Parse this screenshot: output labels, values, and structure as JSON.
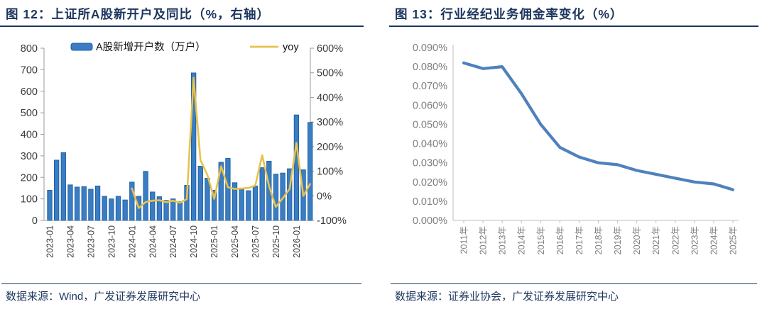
{
  "figure12": {
    "title": "图 12：上证所A股新开户及同比（%，右轴）",
    "source": "数据来源：Wind，广发证券发展研究中心"
  },
  "figure13": {
    "title": "图 13：行业经纪业务佣金率变化（%）",
    "source": "数据来源：证券业协会，广发证券发展研究中心"
  },
  "colors": {
    "navy": "#1C355E",
    "bar_fill": "#3A7DC2",
    "bar_stroke": "#1B5EA6",
    "yoy_line": "#E8C24B",
    "commission_line": "#4E81BD",
    "axis_line": "#9B9B9B",
    "axis_text_dark": "#3A3A3A",
    "axis_text_gray": "#7F7F7F"
  },
  "chart_data": [
    {
      "type": "bar",
      "title": "上证所A股新开户及同比（%，右轴）",
      "legend_position": "top",
      "categories": [
        "2023-01",
        "2023-02",
        "2023-03",
        "2023-04",
        "2023-05",
        "2023-06",
        "2023-07",
        "2023-08",
        "2023-09",
        "2023-10",
        "2023-11",
        "2023-12",
        "2024-01",
        "2024-02",
        "2024-03",
        "2024-04",
        "2024-05",
        "2024-06",
        "2024-07",
        "2024-08",
        "2024-09",
        "2024-10",
        "2024-11",
        "2024-12",
        "2025-01",
        "2025-02",
        "2025-03",
        "2025-04",
        "2025-05",
        "2025-06",
        "2025-07",
        "2025-08",
        "2025-09",
        "2025-10",
        "2025-11",
        "2025-12",
        "2026-01",
        "2026-02",
        "2026-03"
      ],
      "x_tick_every": 3,
      "series": [
        {
          "name": "A股新增开户数（万户）",
          "kind": "bar",
          "axis": "left",
          "values": [
            140,
            280,
            315,
            165,
            155,
            157,
            145,
            160,
            112,
            100,
            112,
            95,
            178,
            112,
            228,
            132,
            110,
            93,
            100,
            88,
            163,
            685,
            252,
            196,
            140,
            270,
            288,
            175,
            145,
            138,
            160,
            245,
            275,
            215,
            220,
            240,
            490,
            235,
            455
          ]
        },
        {
          "name": "yoy",
          "kind": "line",
          "axis": "right",
          "values": [
            null,
            null,
            null,
            null,
            null,
            null,
            null,
            null,
            null,
            null,
            null,
            null,
            30,
            -50,
            -25,
            -20,
            -18,
            -26,
            -20,
            -28,
            -14,
            480,
            145,
            85,
            -12,
            120,
            35,
            28,
            30,
            32,
            42,
            165,
            40,
            -45,
            -10,
            28,
            215,
            0,
            48
          ]
        }
      ],
      "left_axis": {
        "min": 0,
        "max": 800,
        "step": 100,
        "suffix": ""
      },
      "right_axis": {
        "min": -100,
        "max": 600,
        "step": 100,
        "suffix": "%"
      },
      "grid": false
    },
    {
      "type": "line",
      "title": "行业经纪业务佣金率变化（%）",
      "categories": [
        "2011年",
        "2012年",
        "2013年",
        "2014年",
        "2015年",
        "2016年",
        "2017年",
        "2018年",
        "2019年",
        "2020年",
        "2021年",
        "2022年",
        "2023年",
        "2024年",
        "2025年"
      ],
      "values": [
        0.082,
        0.079,
        0.08,
        0.066,
        0.05,
        0.038,
        0.033,
        0.03,
        0.029,
        0.026,
        0.024,
        0.022,
        0.02,
        0.019,
        0.016
      ],
      "ylabel": "",
      "y_axis": {
        "min": 0.0,
        "max": 0.09,
        "step": 0.01,
        "decimals": 3,
        "suffix": "%"
      },
      "grid": false,
      "legend_position": "none"
    }
  ]
}
